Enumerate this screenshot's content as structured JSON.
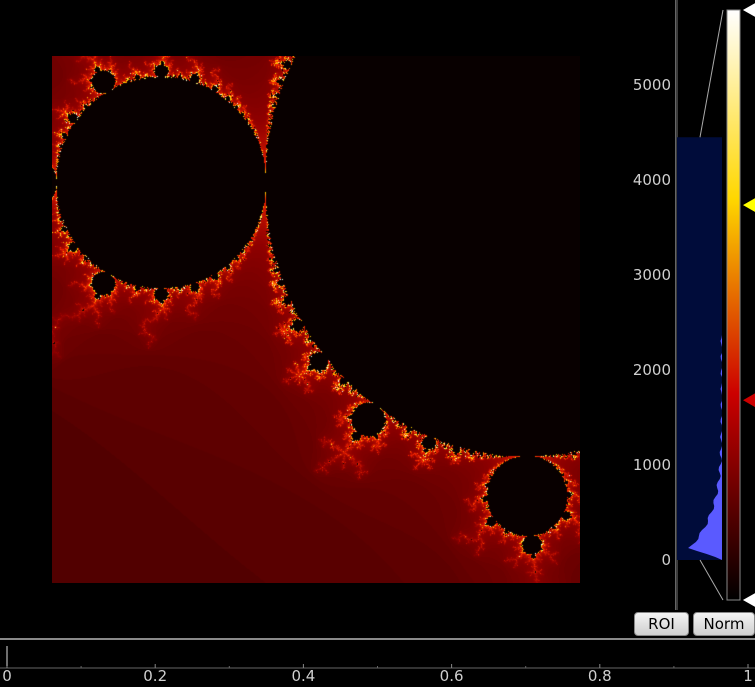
{
  "histogram": {
    "tick_labels": [
      "5000",
      "4000",
      "3000",
      "2000",
      "1000",
      "0"
    ],
    "tick_values": [
      5000,
      4000,
      3000,
      2000,
      1000,
      0
    ],
    "range_max": 4450,
    "level_max": 5750,
    "level_min": -450,
    "markers": [
      {
        "name": "top-level-handle",
        "value": 5750,
        "color": "#ffffff"
      },
      {
        "name": "yellow-gradient-handle",
        "value": 3700,
        "color": "#ffff00"
      },
      {
        "name": "red-gradient-handle",
        "value": 1650,
        "color": "#cc0000"
      },
      {
        "name": "bottom-level-handle",
        "value": -450,
        "color": "#ffffff"
      }
    ],
    "colors": {
      "region": "#000c3a",
      "curve": "#5a5aff",
      "gradient_top": "#ffffff",
      "gradient_mid_yellow": "#ffd700",
      "gradient_mid_red": "#cc0000",
      "gradient_bottom": "#000000"
    }
  },
  "buttons": {
    "roi_label": "ROI",
    "norm_label": "Norm"
  },
  "timeline": {
    "labels": [
      "0",
      "0.2",
      "0.4",
      "0.6",
      "0.8",
      "1"
    ],
    "values": [
      0,
      0.2,
      0.4,
      0.6,
      0.8,
      1
    ],
    "marker_value": 0
  }
}
